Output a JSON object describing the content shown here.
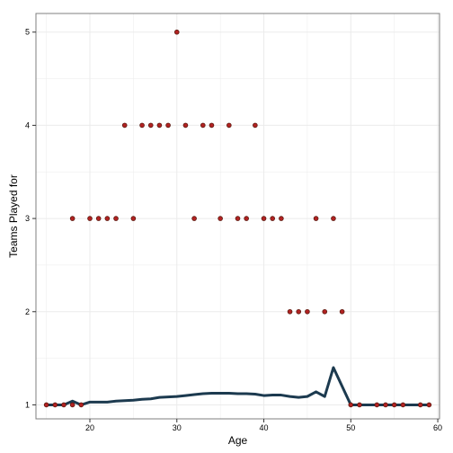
{
  "chart_data": {
    "type": "scatter",
    "title": "",
    "xlabel": "Age",
    "ylabel": "Teams Played for",
    "xlim": [
      13.8,
      60.2
    ],
    "ylim": [
      0.85,
      5.2
    ],
    "x_ticks": [
      20,
      30,
      40,
      50,
      60
    ],
    "y_ticks": [
      1,
      2,
      3,
      4,
      5
    ],
    "grid": true,
    "colors": {
      "panel_border": "#7f7f7f",
      "grid": "#ebebeb",
      "point_fill": "#b22222",
      "point_stroke": "#5a1a10",
      "line": "#1c3a4f"
    },
    "series": [
      {
        "type": "scatter",
        "points": [
          [
            15,
            1
          ],
          [
            16,
            1
          ],
          [
            17,
            1
          ],
          [
            18,
            1
          ],
          [
            19,
            1
          ],
          [
            18,
            3
          ],
          [
            20,
            3
          ],
          [
            21,
            3
          ],
          [
            22,
            3
          ],
          [
            23,
            3
          ],
          [
            25,
            3
          ],
          [
            24,
            4
          ],
          [
            26,
            4
          ],
          [
            27,
            4
          ],
          [
            28,
            4
          ],
          [
            29,
            4
          ],
          [
            30,
            5
          ],
          [
            31,
            4
          ],
          [
            32,
            3
          ],
          [
            33,
            4
          ],
          [
            34,
            4
          ],
          [
            35,
            3
          ],
          [
            36,
            4
          ],
          [
            37,
            3
          ],
          [
            38,
            3
          ],
          [
            39,
            4
          ],
          [
            40,
            3
          ],
          [
            41,
            3
          ],
          [
            42,
            3
          ],
          [
            43,
            2
          ],
          [
            44,
            2
          ],
          [
            45,
            2
          ],
          [
            46,
            3
          ],
          [
            47,
            2
          ],
          [
            48,
            3
          ],
          [
            49,
            2
          ],
          [
            50,
            1
          ],
          [
            51,
            1
          ],
          [
            53,
            1
          ],
          [
            54,
            1
          ],
          [
            55,
            1
          ],
          [
            56,
            1
          ],
          [
            58,
            1
          ],
          [
            59,
            1
          ]
        ]
      },
      {
        "type": "line",
        "points": [
          [
            15,
            1.0
          ],
          [
            16,
            1.0
          ],
          [
            17,
            1.0
          ],
          [
            18,
            1.04
          ],
          [
            19,
            1.0
          ],
          [
            20,
            1.03
          ],
          [
            21,
            1.03
          ],
          [
            22,
            1.03
          ],
          [
            23,
            1.04
          ],
          [
            24,
            1.045
          ],
          [
            25,
            1.05
          ],
          [
            26,
            1.06
          ],
          [
            27,
            1.065
          ],
          [
            28,
            1.08
          ],
          [
            29,
            1.085
          ],
          [
            30,
            1.09
          ],
          [
            31,
            1.1
          ],
          [
            32,
            1.11
          ],
          [
            33,
            1.12
          ],
          [
            34,
            1.125
          ],
          [
            35,
            1.125
          ],
          [
            36,
            1.125
          ],
          [
            37,
            1.12
          ],
          [
            38,
            1.12
          ],
          [
            39,
            1.115
          ],
          [
            40,
            1.1
          ],
          [
            41,
            1.105
          ],
          [
            42,
            1.105
          ],
          [
            43,
            1.09
          ],
          [
            44,
            1.08
          ],
          [
            45,
            1.09
          ],
          [
            46,
            1.14
          ],
          [
            47,
            1.09
          ],
          [
            48,
            1.4
          ],
          [
            49,
            1.2
          ],
          [
            50,
            1.0
          ],
          [
            51,
            1.0
          ],
          [
            53,
            1.0
          ],
          [
            54,
            1.0
          ],
          [
            55,
            1.0
          ],
          [
            56,
            1.0
          ],
          [
            58,
            1.0
          ],
          [
            59,
            1.0
          ]
        ]
      }
    ]
  }
}
